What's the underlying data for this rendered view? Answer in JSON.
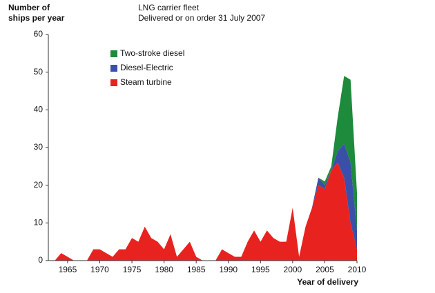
{
  "chart_data": {
    "type": "stacked-area",
    "title": "LNG carrier fleet",
    "subtitle": "Delivered or on order 31 July 2007",
    "y_label": "Number of ships per year",
    "x_label": "Year of delivery",
    "x": [
      1962,
      1963,
      1964,
      1965,
      1966,
      1967,
      1968,
      1969,
      1970,
      1971,
      1972,
      1973,
      1974,
      1975,
      1976,
      1977,
      1978,
      1979,
      1980,
      1981,
      1982,
      1983,
      1984,
      1985,
      1986,
      1987,
      1988,
      1989,
      1990,
      1991,
      1992,
      1993,
      1994,
      1995,
      1996,
      1997,
      1998,
      1999,
      2000,
      2001,
      2002,
      2003,
      2004,
      2005,
      2006,
      2007,
      2008,
      2009,
      2010
    ],
    "series": [
      {
        "name": "Two-stroke diesel",
        "color": "#1e8a3c",
        "values": [
          0,
          0,
          0,
          0,
          0,
          0,
          0,
          0,
          0,
          0,
          0,
          0,
          0,
          0,
          0,
          0,
          0,
          0,
          0,
          0,
          0,
          0,
          0,
          0,
          0,
          0,
          0,
          0,
          0,
          0,
          0,
          0,
          0,
          0,
          0,
          0,
          0,
          0,
          0,
          0,
          0,
          0,
          0,
          1,
          1,
          9,
          18,
          22,
          10
        ]
      },
      {
        "name": "Diesel-Electric",
        "color": "#3a4fa8",
        "values": [
          0,
          0,
          0,
          0,
          0,
          0,
          0,
          0,
          0,
          0,
          0,
          0,
          0,
          0,
          0,
          0,
          0,
          0,
          0,
          0,
          0,
          0,
          0,
          0,
          0,
          0,
          0,
          0,
          0,
          0,
          0,
          0,
          0,
          0,
          0,
          0,
          0,
          0,
          0,
          0,
          0,
          0,
          2,
          1,
          0,
          3,
          9,
          16,
          5
        ]
      },
      {
        "name": "Steam turbine",
        "color": "#e8231f",
        "values": [
          0,
          0,
          2,
          1,
          0,
          0,
          0,
          3,
          3,
          2,
          1,
          3,
          3,
          6,
          5,
          9,
          6,
          5,
          3,
          7,
          1,
          3,
          5,
          1,
          0,
          0,
          0,
          3,
          2,
          1,
          1,
          5,
          8,
          5,
          8,
          6,
          5,
          5,
          14,
          1,
          9,
          14,
          20,
          19,
          24,
          26,
          22,
          10,
          3
        ]
      }
    ],
    "xlim": [
      1962,
      2010
    ],
    "xticks": [
      1965,
      1970,
      1975,
      1980,
      1985,
      1990,
      1995,
      2000,
      2005,
      2010
    ],
    "ylim": [
      0,
      60
    ],
    "yticks": [
      0,
      10,
      20,
      30,
      40,
      50,
      60
    ]
  }
}
